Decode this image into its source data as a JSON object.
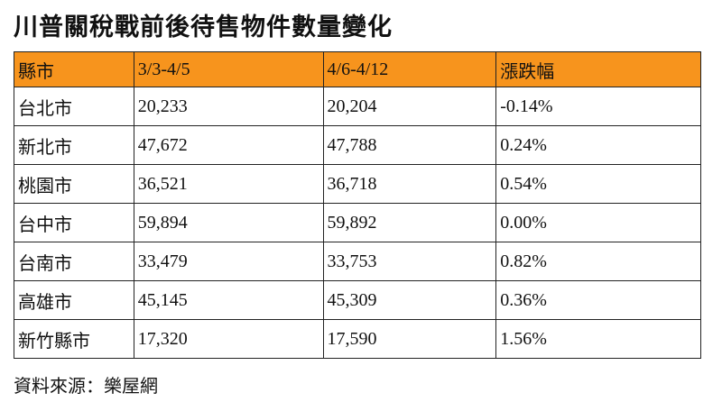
{
  "header": {
    "title": "川普關稅戰前後待售物件數量變化"
  },
  "table": {
    "columns": [
      "縣市",
      "3/3-4/5",
      "4/6-4/12",
      "漲跌幅"
    ],
    "rows": [
      [
        "台北市",
        "20,233",
        "20,204",
        "-0.14%"
      ],
      [
        "新北市",
        "47,672",
        "47,788",
        "0.24%"
      ],
      [
        "桃園市",
        "36,521",
        "36,718",
        "0.54%"
      ],
      [
        "台中市",
        "59,894",
        "59,892",
        "0.00%"
      ],
      [
        "台南市",
        "33,479",
        "33,753",
        "0.82%"
      ],
      [
        "高雄市",
        "45,145",
        "45,309",
        "0.36%"
      ],
      [
        "新竹縣市",
        "17,320",
        "17,590",
        "1.56%"
      ]
    ]
  },
  "footer": {
    "source": "資料來源：樂屋網"
  }
}
